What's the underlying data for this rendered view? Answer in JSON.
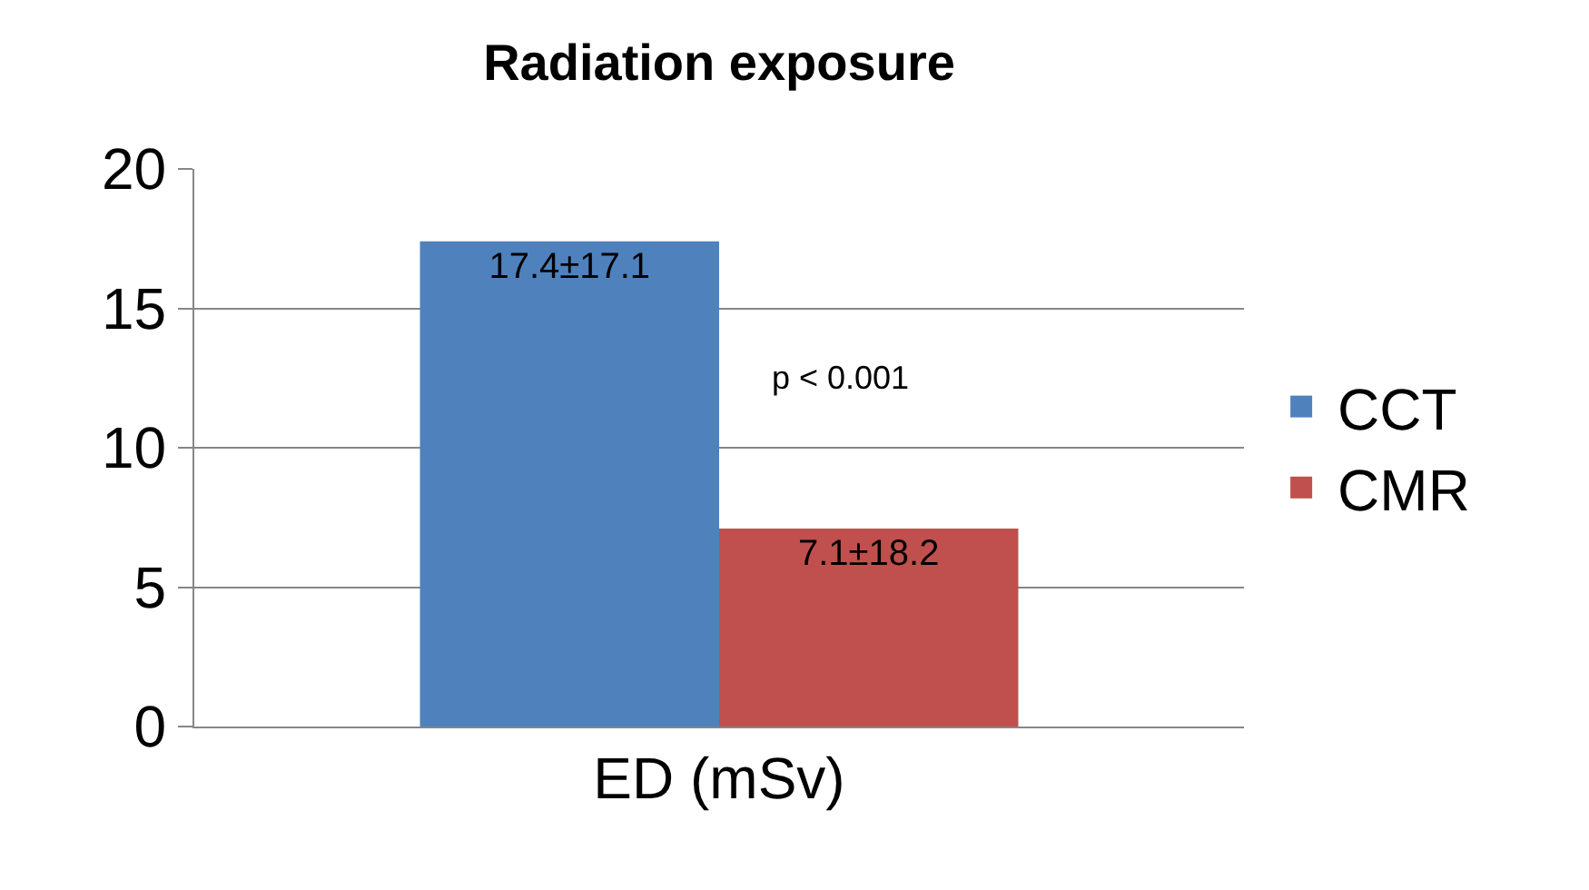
{
  "chart_data": {
    "type": "bar",
    "title": "Radiation exposure",
    "categories": [
      "ED (mSv)"
    ],
    "series": [
      {
        "name": "CCT",
        "color": "#4f81bd",
        "values": [
          17.4
        ],
        "value_labels": [
          "17.4±17.1"
        ]
      },
      {
        "name": "CMR",
        "color": "#c0504d",
        "values": [
          7.1
        ],
        "value_labels": [
          "7.1±18.2"
        ]
      }
    ],
    "annotations": [
      {
        "text": "p < 0.001",
        "x": "ED (mSv)",
        "y": 12.5
      }
    ],
    "ylim": [
      0,
      20
    ],
    "yticks": [
      0,
      5,
      10,
      15,
      20
    ],
    "grid": "y",
    "legend": "right"
  }
}
